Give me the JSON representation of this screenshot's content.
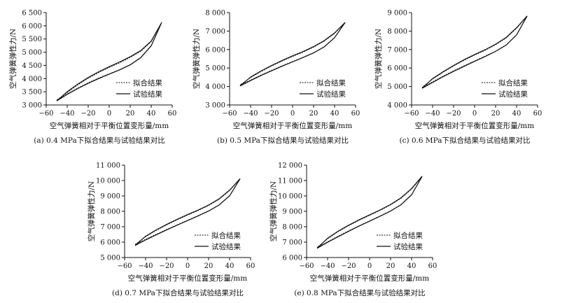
{
  "legend": {
    "fit": "拟合结果",
    "test": "试验结果"
  },
  "axis": {
    "xlabel": "空气弹簧相对于平衡位置变形量/mm",
    "ylabel": "空气弹簧弹性力/N",
    "xticks": [
      "−60",
      "−40",
      "−20",
      "0",
      "20",
      "40",
      "60"
    ]
  },
  "chart_data": [
    {
      "type": "line",
      "caption": "(a) 0.4 MPa下拟合结果与试验结果对比",
      "xlim": [
        -60,
        60
      ],
      "ylim": [
        3000,
        6500
      ],
      "yticks": [
        3000,
        3500,
        4000,
        4500,
        5000,
        5500,
        6000,
        6500
      ],
      "ytick_labels": [
        "3 000",
        "3 500",
        "4 000",
        "4 500",
        "5 000",
        "5 500",
        "6 000",
        "6 500"
      ],
      "series": [
        {
          "name": "拟合结果",
          "style": "dashed",
          "x": [
            -50,
            -40,
            -30,
            -20,
            -10,
            0,
            10,
            20,
            30,
            40,
            50,
            40,
            30,
            20,
            10,
            0,
            -10,
            -20,
            -30,
            -40,
            -50
          ],
          "y": [
            3180,
            3420,
            3640,
            3840,
            4020,
            4180,
            4340,
            4530,
            4800,
            5250,
            6120,
            5400,
            5030,
            4800,
            4600,
            4420,
            4230,
            4010,
            3760,
            3470,
            3180
          ]
        },
        {
          "name": "试验结果",
          "style": "solid",
          "x": [
            -50,
            -40,
            -30,
            -20,
            -10,
            0,
            10,
            20,
            30,
            40,
            50,
            40,
            30,
            20,
            10,
            0,
            -10,
            -20,
            -30,
            -40,
            -50
          ],
          "y": [
            3150,
            3400,
            3620,
            3820,
            4000,
            4170,
            4330,
            4520,
            4790,
            5240,
            6130,
            5420,
            5060,
            4830,
            4630,
            4450,
            4260,
            4040,
            3790,
            3500,
            3150
          ]
        }
      ]
    },
    {
      "type": "line",
      "caption": "(b) 0.5 MPa下拟合结果与试验结果对比",
      "xlim": [
        -60,
        60
      ],
      "ylim": [
        3000,
        8000
      ],
      "yticks": [
        3000,
        4000,
        5000,
        6000,
        7000,
        8000
      ],
      "ytick_labels": [
        "3 000",
        "4 000",
        "5 000",
        "6 000",
        "7 000",
        "8 000"
      ],
      "series": [
        {
          "name": "拟合结果",
          "style": "dashed",
          "x": [
            -50,
            -40,
            -30,
            -20,
            -10,
            0,
            10,
            20,
            30,
            40,
            50,
            40,
            30,
            20,
            10,
            0,
            -10,
            -20,
            -30,
            -40,
            -50
          ],
          "y": [
            4080,
            4350,
            4620,
            4870,
            5120,
            5350,
            5580,
            5830,
            6150,
            6650,
            7450,
            6870,
            6450,
            6130,
            5860,
            5630,
            5380,
            5110,
            4810,
            4480,
            4080
          ]
        },
        {
          "name": "试验结果",
          "style": "solid",
          "x": [
            -50,
            -40,
            -30,
            -20,
            -10,
            0,
            10,
            20,
            30,
            40,
            50,
            40,
            30,
            20,
            10,
            0,
            -10,
            -20,
            -30,
            -40,
            -50
          ],
          "y": [
            4030,
            4320,
            4600,
            4850,
            5100,
            5330,
            5570,
            5820,
            6140,
            6640,
            7470,
            6900,
            6480,
            6160,
            5890,
            5660,
            5410,
            5140,
            4840,
            4510,
            4030
          ]
        }
      ]
    },
    {
      "type": "line",
      "caption": "(c) 0.6 MPa下拟合结果与试验结果对比",
      "xlim": [
        -60,
        60
      ],
      "ylim": [
        4000,
        9000
      ],
      "yticks": [
        4000,
        5000,
        6000,
        7000,
        8000,
        9000
      ],
      "ytick_labels": [
        "4 000",
        "5 000",
        "6 000",
        "7 000",
        "8 000",
        "9 000"
      ],
      "series": [
        {
          "name": "拟合结果",
          "style": "dashed",
          "x": [
            -50,
            -40,
            -30,
            -20,
            -10,
            0,
            10,
            20,
            30,
            40,
            50,
            40,
            30,
            20,
            10,
            0,
            -10,
            -20,
            -30,
            -40,
            -50
          ],
          "y": [
            4950,
            5250,
            5560,
            5850,
            6120,
            6380,
            6640,
            6910,
            7250,
            7800,
            8800,
            8150,
            7620,
            7260,
            6960,
            6700,
            6420,
            6110,
            5770,
            5400,
            4950
          ]
        },
        {
          "name": "试验结果",
          "style": "solid",
          "x": [
            -50,
            -40,
            -30,
            -20,
            -10,
            0,
            10,
            20,
            30,
            40,
            50,
            40,
            30,
            20,
            10,
            0,
            -10,
            -20,
            -30,
            -40,
            -50
          ],
          "y": [
            4900,
            5220,
            5530,
            5820,
            6090,
            6360,
            6620,
            6900,
            7240,
            7790,
            8820,
            8180,
            7650,
            7290,
            6990,
            6730,
            6450,
            6140,
            5800,
            5430,
            4900
          ]
        }
      ]
    },
    {
      "type": "line",
      "caption": "(d) 0.7 MPa下拟合结果与试验结果对比",
      "xlim": [
        -60,
        60
      ],
      "ylim": [
        5000,
        11000
      ],
      "yticks": [
        5000,
        6000,
        7000,
        8000,
        9000,
        10000,
        11000
      ],
      "ytick_labels": [
        "5 000",
        "6 000",
        "7 000",
        "8 000",
        "9 000",
        "10 000",
        "11 000"
      ],
      "series": [
        {
          "name": "拟合结果",
          "style": "dashed",
          "x": [
            -50,
            -40,
            -30,
            -20,
            -10,
            0,
            10,
            20,
            30,
            40,
            50,
            40,
            30,
            20,
            10,
            0,
            -10,
            -20,
            -30,
            -40,
            -50
          ],
          "y": [
            5850,
            6180,
            6500,
            6820,
            7120,
            7420,
            7720,
            8030,
            8420,
            9020,
            10100,
            9350,
            8780,
            8380,
            8050,
            7760,
            7450,
            7120,
            6760,
            6350,
            5850
          ]
        },
        {
          "name": "试验结果",
          "style": "solid",
          "x": [
            -50,
            -40,
            -30,
            -20,
            -10,
            0,
            10,
            20,
            30,
            40,
            50,
            40,
            30,
            20,
            10,
            0,
            -10,
            -20,
            -30,
            -40,
            -50
          ],
          "y": [
            5780,
            6140,
            6470,
            6790,
            7100,
            7400,
            7700,
            8020,
            8410,
            9010,
            10120,
            9380,
            8810,
            8410,
            8080,
            7790,
            7480,
            7150,
            6790,
            6380,
            5780
          ]
        }
      ]
    },
    {
      "type": "line",
      "caption": "(e) 0.8 MPa下拟合结果与试验结果对比",
      "xlim": [
        -60,
        60
      ],
      "ylim": [
        6000,
        12000
      ],
      "yticks": [
        6000,
        7000,
        8000,
        9000,
        10000,
        11000,
        12000
      ],
      "ytick_labels": [
        "6 000",
        "7 000",
        "8 000",
        "9 000",
        "10 000",
        "11 000",
        "12 000"
      ],
      "series": [
        {
          "name": "拟合结果",
          "style": "dashed",
          "x": [
            -50,
            -40,
            -30,
            -20,
            -10,
            0,
            10,
            20,
            30,
            40,
            50,
            40,
            30,
            20,
            10,
            0,
            -10,
            -20,
            -30,
            -40,
            -50
          ],
          "y": [
            6650,
            7020,
            7380,
            7730,
            8060,
            8380,
            8700,
            9030,
            9440,
            10080,
            11250,
            10450,
            9850,
            9420,
            9060,
            8740,
            8420,
            8070,
            7680,
            7220,
            6650
          ]
        },
        {
          "name": "试验结果",
          "style": "solid",
          "x": [
            -50,
            -40,
            -30,
            -20,
            -10,
            0,
            10,
            20,
            30,
            40,
            50,
            40,
            30,
            20,
            10,
            0,
            -10,
            -20,
            -30,
            -40,
            -50
          ],
          "y": [
            6600,
            6990,
            7350,
            7700,
            8040,
            8360,
            8680,
            9020,
            9430,
            10070,
            11280,
            10480,
            9880,
            9450,
            9090,
            8770,
            8450,
            8100,
            7710,
            7250,
            6600
          ]
        }
      ]
    }
  ]
}
